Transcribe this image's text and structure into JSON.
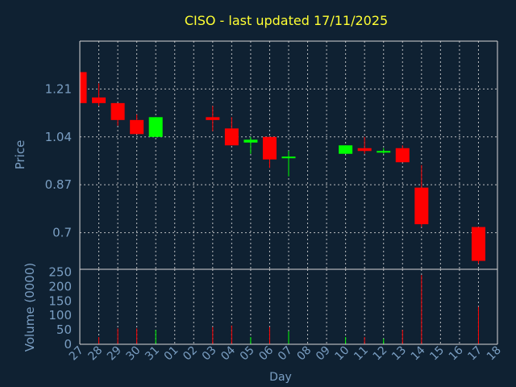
{
  "chart_data": {
    "type": "candlestick",
    "title": "CISO - last updated 17/11/2025",
    "ylabel": "Price",
    "volume_ylabel": "Volume (0000)",
    "xlabel": "Day",
    "price_ylim": [
      0.57,
      1.38
    ],
    "price_ticks": [
      {
        "value": 0.7,
        "label": "0.7"
      },
      {
        "value": 0.87,
        "label": "0.87"
      },
      {
        "value": 1.04,
        "label": "1.04"
      },
      {
        "value": 1.21,
        "label": "1.21"
      }
    ],
    "volume_ylim": [
      0,
      260
    ],
    "volume_ticks": [
      {
        "value": 0,
        "label": "0"
      },
      {
        "value": 50,
        "label": "50"
      },
      {
        "value": 100,
        "label": "100"
      },
      {
        "value": 150,
        "label": "150"
      },
      {
        "value": 200,
        "label": "200"
      },
      {
        "value": 250,
        "label": "250"
      }
    ],
    "up_color": "#00ff00",
    "down_color": "#ff0000",
    "days": [
      "27",
      "28",
      "29",
      "30",
      "31",
      "01",
      "02",
      "03",
      "04",
      "05",
      "06",
      "07",
      "08",
      "09",
      "10",
      "11",
      "12",
      "13",
      "14",
      "15",
      "16",
      "17",
      "18"
    ],
    "candles": [
      {
        "day": "27",
        "open": 1.27,
        "high": 1.27,
        "low": 1.16,
        "close": 1.16,
        "volume": 0
      },
      {
        "day": "28",
        "open": 1.18,
        "high": 1.23,
        "low": 1.15,
        "close": 1.16,
        "volume": 25
      },
      {
        "day": "29",
        "open": 1.16,
        "high": 1.16,
        "low": 1.08,
        "close": 1.1,
        "volume": 55
      },
      {
        "day": "30",
        "open": 1.1,
        "high": 1.12,
        "low": 1.05,
        "close": 1.05,
        "volume": 55
      },
      {
        "day": "31",
        "open": 1.04,
        "high": 1.11,
        "low": 1.04,
        "close": 1.11,
        "volume": 50
      },
      {
        "day": "03",
        "open": 1.11,
        "high": 1.15,
        "low": 1.06,
        "close": 1.1,
        "volume": 60
      },
      {
        "day": "04",
        "open": 1.07,
        "high": 1.11,
        "low": 1.01,
        "close": 1.01,
        "volume": 65
      },
      {
        "day": "05",
        "open": 1.02,
        "high": 1.04,
        "low": 0.98,
        "close": 1.03,
        "volume": 25
      },
      {
        "day": "06",
        "open": 1.04,
        "high": 1.04,
        "low": 0.93,
        "close": 0.96,
        "volume": 60
      },
      {
        "day": "07",
        "open": 0.97,
        "high": 0.99,
        "low": 0.9,
        "close": 0.97,
        "volume": 45
      },
      {
        "day": "10",
        "open": 0.98,
        "high": 1.01,
        "low": 0.98,
        "close": 1.01,
        "volume": 25
      },
      {
        "day": "11",
        "open": 1.0,
        "high": 1.04,
        "low": 0.98,
        "close": 0.99,
        "volume": 25
      },
      {
        "day": "12",
        "open": 0.99,
        "high": 1.0,
        "low": 0.98,
        "close": 0.99,
        "volume": 20
      },
      {
        "day": "13",
        "open": 1.0,
        "high": 1.01,
        "low": 0.95,
        "close": 0.95,
        "volume": 50
      },
      {
        "day": "14",
        "open": 0.86,
        "high": 0.94,
        "low": 0.72,
        "close": 0.73,
        "volume": 240
      },
      {
        "day": "17",
        "open": 0.72,
        "high": 0.72,
        "low": 0.59,
        "close": 0.6,
        "volume": 130
      }
    ]
  }
}
